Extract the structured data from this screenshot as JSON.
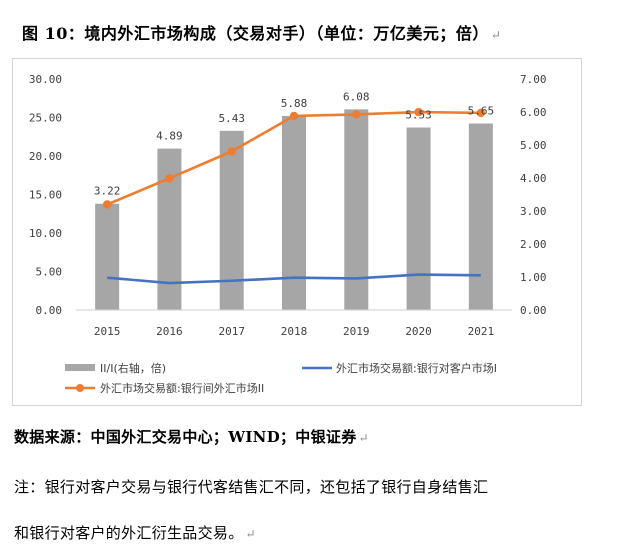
{
  "title": "图 10：境内外汇市场构成（交易对手）（单位：万亿美元；倍）",
  "paragraph_mark": "↵",
  "chart_data": {
    "type": "bar",
    "categories": [
      "2015",
      "2016",
      "2017",
      "2018",
      "2019",
      "2020",
      "2021"
    ],
    "series": [
      {
        "name": "II/I(右轴，倍)",
        "type": "bar",
        "axis": "right",
        "color": "#a6a6a6",
        "values": [
          3.22,
          4.89,
          5.43,
          5.88,
          6.08,
          5.53,
          5.65
        ]
      },
      {
        "name": "外汇市场交易额:银行对客户市场I",
        "type": "line",
        "axis": "left",
        "color": "#4472c4",
        "values": [
          4.2,
          3.5,
          3.8,
          4.2,
          4.1,
          4.6,
          4.5
        ]
      },
      {
        "name": "外汇市场交易额:银行间外汇市场II",
        "type": "line",
        "axis": "left",
        "color": "#ed7d31",
        "marker": "circle",
        "values": [
          13.7,
          17.1,
          20.6,
          25.2,
          25.4,
          25.7,
          25.6
        ]
      }
    ],
    "data_labels": [
      "3.22",
      "4.89",
      "5.43",
      "5.88",
      "6.08",
      "5.53",
      "5.65"
    ],
    "y_left": {
      "ylim": [
        0,
        30
      ],
      "ticks": [
        "0.00",
        "5.00",
        "10.00",
        "15.00",
        "20.00",
        "25.00",
        "30.00"
      ]
    },
    "y_right": {
      "ylim": [
        0,
        7
      ],
      "ticks": [
        "0.00",
        "1.00",
        "2.00",
        "3.00",
        "4.00",
        "5.00",
        "6.00",
        "7.00"
      ]
    },
    "grid": false,
    "legend_position": "bottom"
  },
  "source_label": "数据来源：",
  "source_text": "中国外汇交易中心；",
  "source_wind": "WIND",
  "source_rest": "；中银证券",
  "note_line1": "注：银行对客户交易与银行代客结售汇不同，还包括了银行自身结售汇",
  "note_line2": "和银行对客户的外汇衍生品交易。"
}
